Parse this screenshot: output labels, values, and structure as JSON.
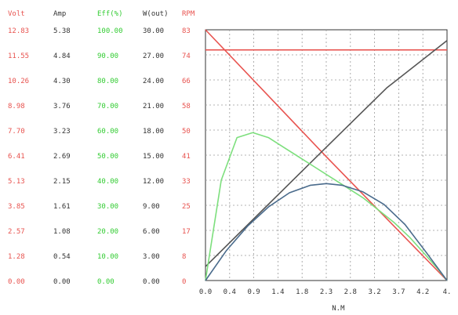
{
  "chart_data": {
    "type": "line",
    "xlabel": "N.M",
    "x_ticks": [
      "0.0",
      "0.4",
      "0.9",
      "1.4",
      "1.8",
      "2.3",
      "2.8",
      "3.2",
      "3.7",
      "4.2",
      "4."
    ],
    "xlim": [
      0,
      4.6
    ],
    "grid": true,
    "columns": [
      {
        "name": "Volt",
        "color": "#e8534f",
        "ticks": [
          "12.83",
          "11.55",
          "10.26",
          "8.98",
          "7.70",
          "6.41",
          "5.13",
          "3.85",
          "2.57",
          "1.28",
          "0.00"
        ]
      },
      {
        "name": "Amp",
        "color": "#333333",
        "ticks": [
          "5.38",
          "4.84",
          "4.30",
          "3.76",
          "3.23",
          "2.69",
          "2.15",
          "1.61",
          "1.08",
          "0.54",
          "0.00"
        ]
      },
      {
        "name": "Eff(%)",
        "color": "#33cc33",
        "ticks": [
          "100.00",
          "90.00",
          "80.00",
          "70.00",
          "60.00",
          "50.00",
          "40.00",
          "30.00",
          "20.00",
          "10.00",
          "0.00"
        ]
      },
      {
        "name": "W(out)",
        "color": "#333333",
        "ticks": [
          "30.00",
          "27.00",
          "24.00",
          "21.00",
          "18.00",
          "15.00",
          "12.00",
          "9.00",
          "6.00",
          "3.00",
          "0.00"
        ]
      },
      {
        "name": "RPM",
        "color": "#e8534f",
        "ticks": [
          "83",
          "74",
          "66",
          "58",
          "50",
          "41",
          "33",
          "25",
          "17",
          "8",
          "0"
        ]
      }
    ],
    "series": [
      {
        "key": "volt",
        "color": "#e8534f",
        "x": [
          0.0,
          4.6
        ],
        "y": [
          11.8,
          11.8
        ],
        "ylim": [
          0,
          12.83
        ]
      },
      {
        "key": "rpm",
        "color": "#e8534f",
        "x": [
          0.0,
          2.3,
          4.6
        ],
        "y": [
          83,
          41,
          0
        ],
        "ylim": [
          0,
          83
        ]
      },
      {
        "key": "amp",
        "color": "#555555",
        "x": [
          0.0,
          1.15,
          2.3,
          3.45,
          4.6
        ],
        "y": [
          0.3,
          1.58,
          2.86,
          4.13,
          5.15
        ],
        "ylim": [
          0,
          5.38
        ]
      },
      {
        "key": "eff",
        "color": "#7ddf7d",
        "x": [
          0.0,
          0.3,
          0.6,
          0.9,
          1.2,
          1.5,
          1.8,
          2.1,
          2.4,
          2.7,
          3.0,
          3.3,
          3.6,
          3.9,
          4.2,
          4.45,
          4.6
        ],
        "y": [
          0,
          40,
          57,
          59,
          57,
          53,
          49,
          45,
          41,
          37,
          33,
          28,
          23,
          17,
          10,
          4,
          0
        ],
        "ylim": [
          0,
          100
        ]
      },
      {
        "key": "wout",
        "color": "#4a6b8c",
        "x": [
          0.0,
          0.4,
          0.8,
          1.2,
          1.6,
          2.0,
          2.3,
          2.6,
          3.0,
          3.4,
          3.8,
          4.2,
          4.6
        ],
        "y": [
          0,
          3.6,
          6.5,
          8.8,
          10.5,
          11.4,
          11.6,
          11.4,
          10.6,
          9.1,
          6.7,
          3.4,
          0
        ],
        "ylim": [
          0,
          30
        ]
      }
    ]
  }
}
